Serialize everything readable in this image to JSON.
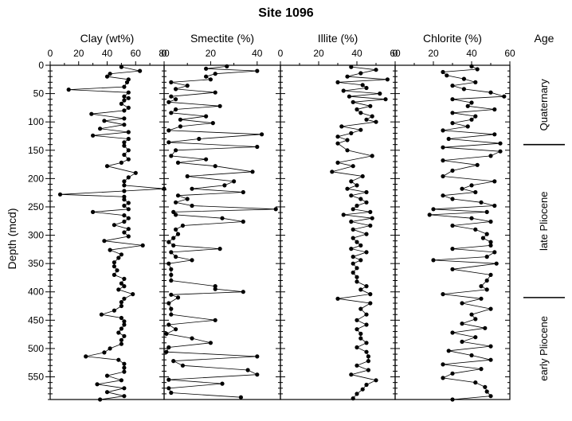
{
  "figure": {
    "title": "Site 1096",
    "ylabel": "Depth (mcd)",
    "age_label": "Age"
  },
  "chart_data": {
    "type": "line",
    "title": "Site 1096",
    "ylabel": "Depth (mcd)",
    "ylim": [
      0,
      590
    ],
    "yticks": [
      0,
      50,
      100,
      150,
      200,
      250,
      300,
      350,
      400,
      450,
      500,
      550
    ],
    "age_column": {
      "label": "Age",
      "zones": [
        {
          "name": "Quaternary",
          "top": 0,
          "bottom": 140
        },
        {
          "name": "late Pliocene",
          "top": 140,
          "bottom": 410
        },
        {
          "name": "early Pliocene",
          "top": 410,
          "bottom": 590
        }
      ],
      "boundaries": [
        140,
        410
      ]
    },
    "panels": [
      {
        "name": "Clay (wt%)",
        "xlim": [
          0,
          80
        ],
        "xticks": [
          0,
          10,
          20,
          30,
          40,
          50,
          60,
          70,
          80
        ],
        "xticklabels": [
          "0",
          "20",
          "40",
          "60",
          "80"
        ],
        "depth": [
          3,
          10,
          15,
          20,
          25,
          30,
          38,
          43,
          48,
          55,
          58,
          62,
          68,
          75,
          80,
          86,
          94,
          98,
          105,
          112,
          118,
          124,
          130,
          136,
          142,
          150,
          158,
          166,
          172,
          178,
          190,
          198,
          205,
          212,
          218,
          222,
          228,
          232,
          237,
          243,
          248,
          254,
          259,
          265,
          270,
          276,
          282,
          289,
          295,
          302,
          310,
          318,
          326,
          334,
          340,
          348,
          355,
          362,
          370,
          377,
          385,
          390,
          396,
          404,
          412,
          418,
          425,
          433,
          440,
          446,
          452,
          458,
          465,
          472,
          478,
          485,
          492,
          500,
          507,
          514,
          520,
          527,
          534,
          541,
          548,
          556,
          563,
          570,
          577,
          584,
          590
        ],
        "values": [
          50,
          63,
          42,
          40,
          55,
          54,
          52,
          13,
          55,
          52,
          55,
          52,
          50,
          55,
          52,
          29,
          52,
          38,
          52,
          35,
          55,
          30,
          55,
          52,
          52,
          55,
          52,
          55,
          50,
          40,
          60,
          55,
          52,
          52,
          80,
          52,
          7,
          52,
          52,
          55,
          52,
          55,
          30,
          52,
          55,
          52,
          45,
          55,
          52,
          55,
          38,
          65,
          42,
          50,
          48,
          45,
          45,
          47,
          45,
          52,
          50,
          52,
          48,
          58,
          52,
          50,
          50,
          45,
          36,
          50,
          52,
          52,
          50,
          48,
          52,
          50,
          50,
          42,
          38,
          25,
          48,
          52,
          52,
          52,
          40,
          50,
          33,
          52,
          40,
          52,
          35
        ]
      },
      {
        "name": "Smectite (%)",
        "xlim": [
          0,
          50
        ],
        "xticks": [
          0,
          10,
          20,
          30,
          40,
          50
        ],
        "xticklabels": [
          "0",
          "20",
          "40"
        ],
        "depth": [
          2,
          6,
          10,
          15,
          20,
          25,
          30,
          36,
          42,
          48,
          55,
          60,
          65,
          72,
          78,
          84,
          90,
          96,
          102,
          108,
          115,
          122,
          130,
          136,
          144,
          150,
          160,
          166,
          172,
          178,
          188,
          196,
          205,
          212,
          218,
          224,
          230,
          236,
          242,
          248,
          254,
          259,
          264,
          270,
          276,
          283,
          290,
          298,
          305,
          312,
          318,
          324,
          330,
          338,
          344,
          350,
          360,
          370,
          380,
          390,
          395,
          400,
          405,
          410,
          420,
          430,
          440,
          450,
          458,
          466,
          474,
          482,
          490,
          498,
          506,
          514,
          522,
          530,
          538,
          546,
          555,
          562,
          570,
          578,
          586
        ],
        "values": [
          27,
          18,
          40,
          22,
          18,
          20,
          3,
          10,
          5,
          22,
          3,
          5,
          2,
          24,
          5,
          3,
          18,
          7,
          21,
          7,
          2,
          42,
          15,
          2,
          40,
          5,
          3,
          18,
          6,
          22,
          38,
          10,
          30,
          26,
          12,
          34,
          6,
          10,
          5,
          12,
          48,
          4,
          5,
          25,
          34,
          8,
          5,
          6,
          4,
          2,
          4,
          24,
          3,
          5,
          12,
          2,
          3,
          3,
          3,
          22,
          22,
          34,
          3,
          6,
          2,
          3,
          3,
          22,
          2,
          5,
          1,
          12,
          20,
          2,
          1,
          40,
          4,
          8,
          36,
          40,
          2,
          25,
          2,
          3,
          33
        ]
      },
      {
        "name": "Illite (%)",
        "xlim": [
          0,
          60
        ],
        "xticks": [
          0,
          10,
          20,
          30,
          40,
          50,
          60
        ],
        "xticklabels": [
          "0",
          "20",
          "40",
          "60"
        ],
        "depth": [
          3,
          8,
          14,
          20,
          25,
          30,
          35,
          40,
          45,
          50,
          55,
          60,
          65,
          72,
          78,
          84,
          90,
          96,
          100,
          108,
          114,
          120,
          126,
          132,
          138,
          150,
          160,
          172,
          178,
          188,
          196,
          205,
          212,
          218,
          224,
          230,
          236,
          242,
          248,
          254,
          259,
          264,
          270,
          276,
          283,
          290,
          298,
          305,
          312,
          318,
          324,
          330,
          338,
          344,
          350,
          358,
          366,
          374,
          382,
          390,
          396,
          404,
          412,
          420,
          430,
          440,
          450,
          458,
          466,
          474,
          482,
          490,
          498,
          506,
          514,
          522,
          530,
          538,
          546,
          556,
          564,
          572,
          580,
          588
        ],
        "values": [
          37,
          50,
          42,
          35,
          56,
          30,
          43,
          45,
          33,
          52,
          36,
          55,
          38,
          47,
          40,
          42,
          48,
          45,
          50,
          32,
          42,
          37,
          30,
          35,
          30,
          35,
          48,
          30,
          38,
          27,
          43,
          37,
          40,
          35,
          45,
          37,
          42,
          45,
          40,
          38,
          47,
          33,
          48,
          37,
          47,
          38,
          45,
          38,
          40,
          42,
          37,
          45,
          38,
          42,
          38,
          40,
          38,
          40,
          40,
          45,
          42,
          47,
          30,
          47,
          42,
          45,
          40,
          45,
          40,
          42,
          42,
          45,
          40,
          45,
          46,
          46,
          40,
          46,
          37,
          50,
          45,
          43,
          40,
          38
        ]
      },
      {
        "name": "Chlorite (%)",
        "xlim": [
          0,
          60
        ],
        "xticks": [
          0,
          10,
          20,
          30,
          40,
          50,
          60
        ],
        "xticklabels": [
          "0",
          "20",
          "40",
          "60"
        ],
        "depth": [
          2,
          7,
          12,
          18,
          24,
          30,
          36,
          42,
          48,
          55,
          60,
          66,
          72,
          78,
          84,
          90,
          96,
          102,
          108,
          115,
          122,
          130,
          138,
          145,
          152,
          160,
          168,
          176,
          186,
          196,
          205,
          212,
          218,
          224,
          230,
          236,
          242,
          248,
          254,
          259,
          264,
          270,
          276,
          283,
          290,
          298,
          305,
          312,
          318,
          324,
          330,
          338,
          344,
          350,
          360,
          370,
          380,
          390,
          396,
          404,
          412,
          420,
          430,
          440,
          448,
          456,
          464,
          472,
          480,
          488,
          496,
          504,
          512,
          520,
          528,
          536,
          544,
          552,
          560,
          568,
          576,
          584,
          590
        ],
        "values": [
          40,
          43,
          25,
          27,
          36,
          42,
          30,
          36,
          50,
          57,
          30,
          40,
          38,
          52,
          30,
          42,
          40,
          30,
          38,
          25,
          52,
          28,
          55,
          25,
          55,
          50,
          25,
          43,
          30,
          25,
          52,
          40,
          35,
          42,
          25,
          30,
          45,
          52,
          20,
          48,
          18,
          40,
          50,
          30,
          42,
          48,
          46,
          50,
          50,
          30,
          52,
          48,
          20,
          53,
          30,
          50,
          48,
          45,
          48,
          25,
          45,
          35,
          50,
          40,
          42,
          35,
          47,
          30,
          42,
          35,
          50,
          28,
          40,
          50,
          25,
          45,
          30,
          25,
          42,
          47,
          48,
          50,
          30
        ]
      }
    ]
  }
}
